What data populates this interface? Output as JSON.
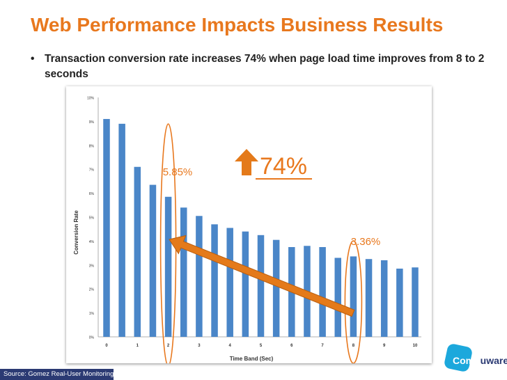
{
  "slide": {
    "title": "Web Performance Impacts Business Results",
    "bullet": "Transaction conversion rate increases 74% when page load time improves from 8 to 2 seconds",
    "source": "Source: Gomez Real-User Monitoring",
    "logo_prefix": "Comp",
    "logo_suffix": "uware"
  },
  "colors": {
    "title": "#e8781e",
    "bar": "#4a86c8",
    "annotation": "#e8781e"
  },
  "chart_data": {
    "type": "bar",
    "xlabel": "Time Band (Sec)",
    "ylabel": "Conversion Rate",
    "ylim": [
      0,
      10
    ],
    "y_ticks": [
      "0%",
      "1%",
      "2%",
      "3%",
      "4%",
      "5%",
      "6%",
      "7%",
      "8%",
      "9%",
      "10%"
    ],
    "x_ticks": [
      "0",
      "1",
      "2",
      "3",
      "4",
      "5",
      "6",
      "7",
      "8",
      "9",
      "10"
    ],
    "x": [
      0,
      0.5,
      1,
      1.5,
      2,
      2.5,
      3,
      3.5,
      4,
      4.5,
      5,
      5.5,
      6,
      6.5,
      7,
      7.5,
      8,
      8.5,
      9,
      9.5,
      10
    ],
    "values": [
      9.1,
      8.9,
      7.1,
      6.35,
      5.85,
      5.4,
      5.05,
      4.7,
      4.55,
      4.4,
      4.25,
      4.05,
      3.75,
      3.8,
      3.75,
      3.3,
      3.36,
      3.25,
      3.2,
      2.85,
      2.9
    ],
    "annotations": {
      "left_value": "5.85%",
      "right_value": "3.36%",
      "increase": "74%"
    }
  }
}
